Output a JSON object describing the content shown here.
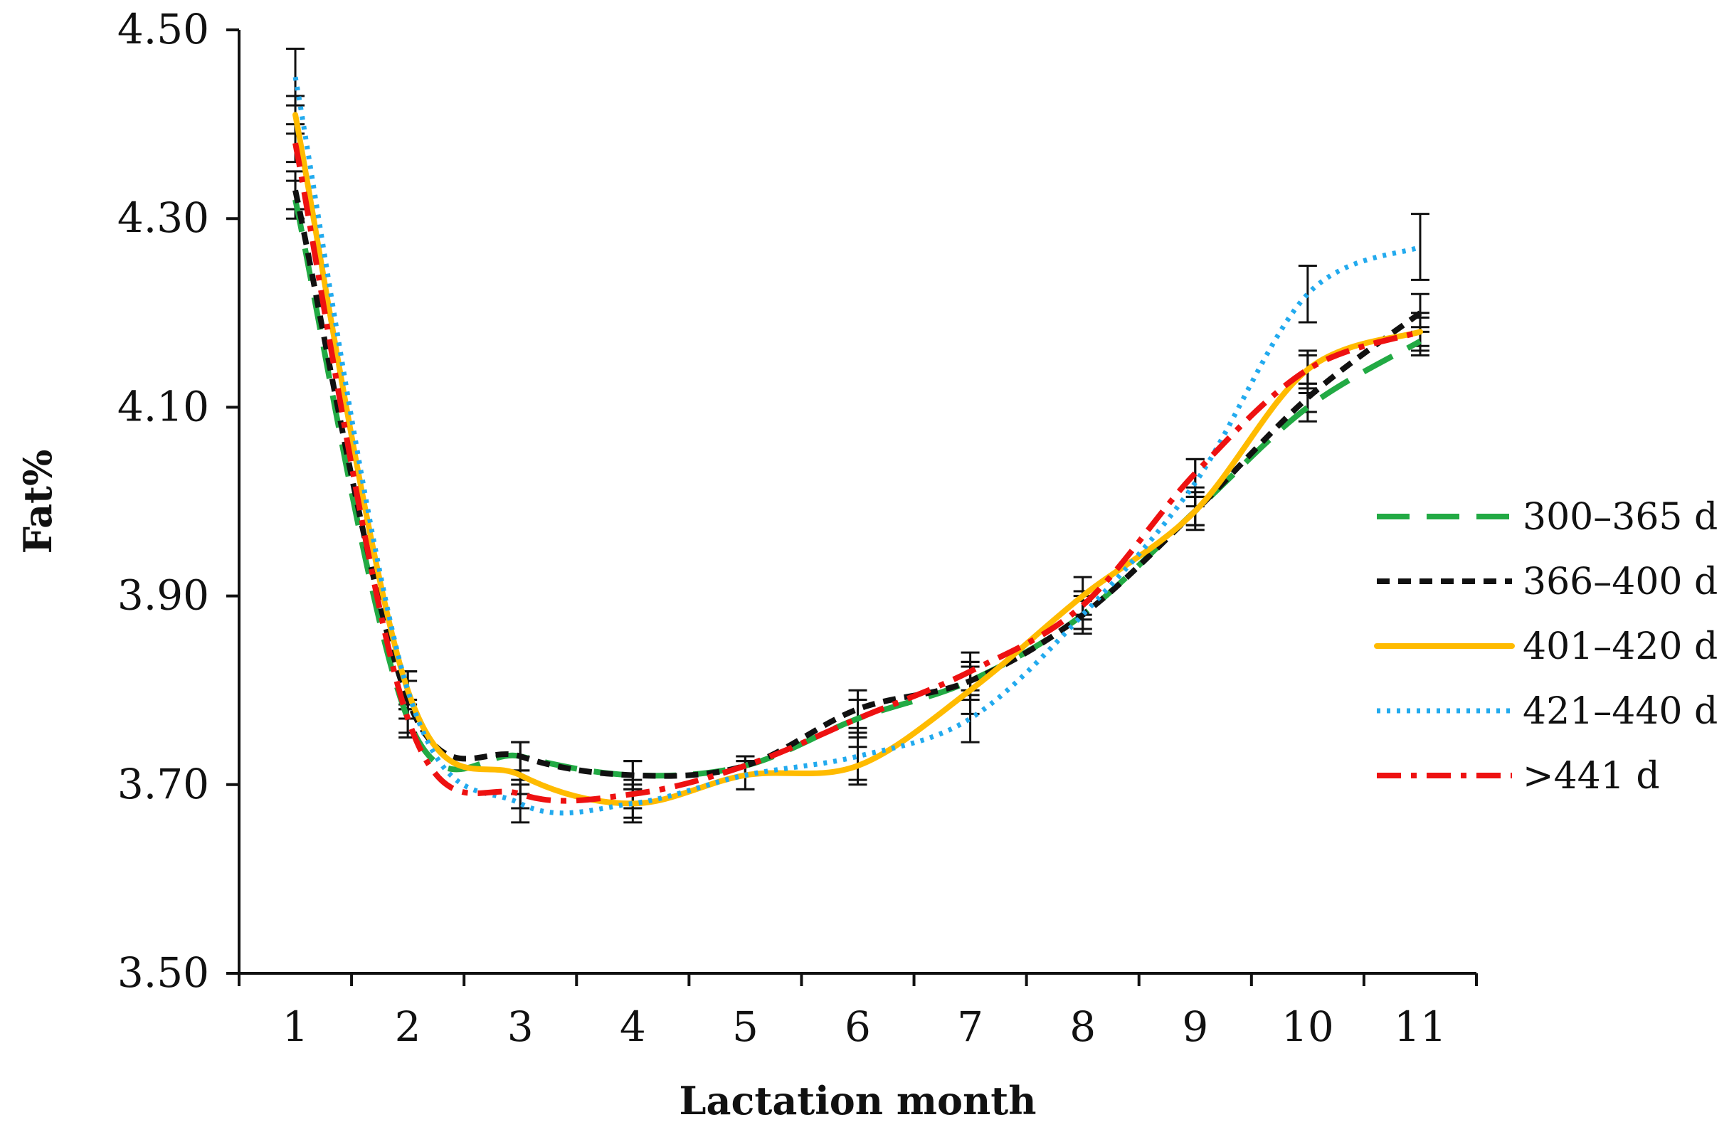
{
  "chart_data": {
    "type": "line",
    "title": "",
    "xlabel": "Lactation month",
    "ylabel": "Fat%",
    "x": [
      1,
      2,
      3,
      4,
      5,
      6,
      7,
      8,
      9,
      10,
      11
    ],
    "ylim": [
      3.5,
      4.5
    ],
    "yticks": [
      "3.50",
      "3.70",
      "3.90",
      "4.10",
      "4.30",
      "4.50"
    ],
    "xticks": [
      "1",
      "2",
      "3",
      "4",
      "5",
      "6",
      "7",
      "8",
      "9",
      "10",
      "11"
    ],
    "legend_position": "right",
    "error_bars": true,
    "series": [
      {
        "name": "300–365 d",
        "color": "#22aa44",
        "dash": "long-dash",
        "values": [
          4.32,
          3.77,
          3.73,
          3.71,
          3.72,
          3.77,
          3.81,
          3.88,
          3.99,
          4.1,
          4.17
        ],
        "errors": [
          0.02,
          0.02,
          0.015,
          0.015,
          0.01,
          0.02,
          0.02,
          0.015,
          0.015,
          0.015,
          0.015
        ]
      },
      {
        "name": "366–400 d",
        "color": "#111111",
        "dash": "short-dash",
        "values": [
          4.33,
          3.79,
          3.73,
          3.71,
          3.72,
          3.78,
          3.81,
          3.88,
          3.99,
          4.11,
          4.2
        ],
        "errors": [
          0.02,
          0.02,
          0.015,
          0.015,
          0.01,
          0.02,
          0.02,
          0.015,
          0.015,
          0.015,
          0.02
        ]
      },
      {
        "name": "401–420 d",
        "color": "#ffbb00",
        "dash": "solid",
        "values": [
          4.41,
          3.8,
          3.71,
          3.68,
          3.71,
          3.72,
          3.8,
          3.9,
          3.99,
          4.14,
          4.18
        ],
        "errors": [
          0.02,
          0.02,
          0.02,
          0.02,
          0.015,
          0.02,
          0.025,
          0.02,
          0.02,
          0.02,
          0.02
        ]
      },
      {
        "name": "421–440 d",
        "color": "#22aaee",
        "dash": "dotted",
        "values": [
          4.45,
          3.8,
          3.68,
          3.68,
          3.71,
          3.73,
          3.77,
          3.88,
          4.02,
          4.22,
          4.27
        ],
        "errors": [
          0.03,
          0.02,
          0.02,
          0.015,
          0.015,
          0.025,
          0.025,
          0.02,
          0.025,
          0.03,
          0.035
        ]
      },
      {
        "name": ">441 d",
        "color": "#ee1111",
        "dash": "dash-dot",
        "values": [
          4.38,
          3.77,
          3.69,
          3.69,
          3.72,
          3.77,
          3.82,
          3.89,
          4.03,
          4.14,
          4.18
        ],
        "errors": [
          0.02,
          0.015,
          0.015,
          0.015,
          0.01,
          0.02,
          0.02,
          0.015,
          0.015,
          0.015,
          0.015
        ]
      }
    ]
  }
}
